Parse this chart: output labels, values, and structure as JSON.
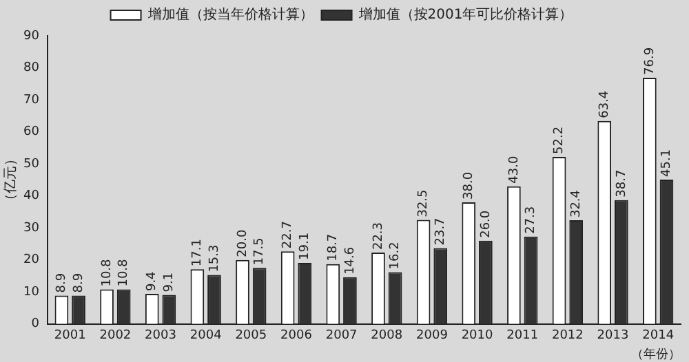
{
  "chart_data": {
    "type": "bar",
    "xlabel": "（年份）",
    "ylabel": "（亿元）",
    "categories": [
      "2001",
      "2002",
      "2003",
      "2004",
      "2005",
      "2006",
      "2007",
      "2008",
      "2009",
      "2010",
      "2011",
      "2012",
      "2013",
      "2014"
    ],
    "series": [
      {
        "name": "增加值（按当年价格计算）",
        "color": "#ffffff",
        "values": [
          8.9,
          10.8,
          9.4,
          17.1,
          20.0,
          22.7,
          18.7,
          22.3,
          32.5,
          38.0,
          43.0,
          52.2,
          63.4,
          76.9
        ],
        "value_labels": [
          "8.9",
          "10.8",
          "9.4",
          "17.1",
          "20.0",
          "22.7",
          "18.7",
          "22.3",
          "32.5",
          "38.0",
          "43.0",
          "52.2",
          "63.4",
          "76.9"
        ]
      },
      {
        "name": "增加值（按2001年可比价格计算）",
        "color": "#333333",
        "values": [
          8.9,
          10.8,
          9.1,
          15.3,
          17.5,
          19.1,
          14.6,
          16.2,
          23.7,
          26.0,
          27.3,
          32.4,
          38.7,
          45.1
        ],
        "value_labels": [
          "8.9",
          "10.8",
          "9.1",
          "15.3",
          "17.5",
          "19.1",
          "14.6",
          "16.2",
          "23.7",
          "26.0",
          "27.3",
          "32.4",
          "38.7",
          "45.1"
        ]
      }
    ],
    "ylim": [
      0,
      90
    ],
    "yticks": [
      0,
      10,
      20,
      30,
      40,
      50,
      60,
      70,
      80,
      90
    ],
    "grid": false,
    "legend": "top"
  }
}
